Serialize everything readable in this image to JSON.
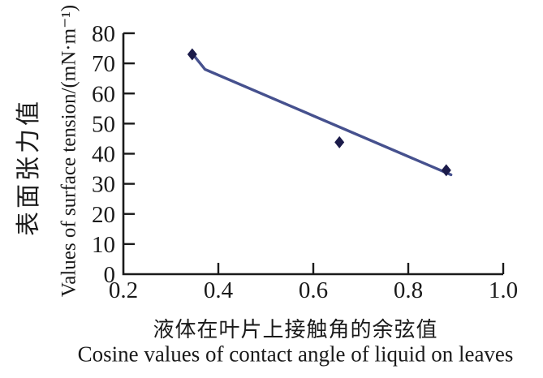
{
  "chart_data": {
    "type": "scatter",
    "xlabel_zh": "液体在叶片上接触角的余弦值",
    "xlabel_en": "Cosine values of contact angle of liquid on leaves",
    "ylabel_zh": "表面张力值",
    "ylabel_en": "Values of surface tension/(mN·m⁻¹)",
    "xlim": [
      0.2,
      1.0
    ],
    "ylim": [
      0,
      80
    ],
    "xticks": [
      {
        "v": 0.2,
        "label": "0.2"
      },
      {
        "v": 0.4,
        "label": "0.4"
      },
      {
        "v": 0.6,
        "label": "0.6"
      },
      {
        "v": 0.8,
        "label": "0.8"
      },
      {
        "v": 1.0,
        "label": "1.0"
      }
    ],
    "yticks": [
      {
        "v": 0,
        "label": "0"
      },
      {
        "v": 10,
        "label": "10"
      },
      {
        "v": 20,
        "label": "20"
      },
      {
        "v": 30,
        "label": "30"
      },
      {
        "v": 40,
        "label": "40"
      },
      {
        "v": 50,
        "label": "50"
      },
      {
        "v": 60,
        "label": "60"
      },
      {
        "v": 70,
        "label": "70"
      },
      {
        "v": 80,
        "label": "80"
      }
    ],
    "points": [
      {
        "x": 0.345,
        "y": 73
      },
      {
        "x": 0.655,
        "y": 43.8
      },
      {
        "x": 0.88,
        "y": 34.5
      }
    ],
    "trendline": [
      {
        "x": 0.35,
        "y": 72.3
      },
      {
        "x": 0.372,
        "y": 68.0
      },
      {
        "x": 0.89,
        "y": 33.0
      }
    ],
    "grid": false,
    "legend": "none",
    "marker": "diamond",
    "marker_color": "#1b1b4a",
    "line_color": "#46518e",
    "axis_color": "#1a1a1a",
    "background": "#ffffff"
  }
}
